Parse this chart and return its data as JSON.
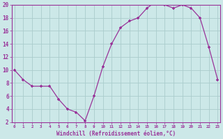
{
  "x": [
    0,
    1,
    2,
    3,
    4,
    5,
    6,
    7,
    8,
    9,
    10,
    11,
    12,
    13,
    14,
    15,
    16,
    17,
    18,
    19,
    20,
    21,
    22,
    23
  ],
  "y": [
    10,
    8.5,
    7.5,
    7.5,
    7.5,
    5.5,
    4,
    3.5,
    2.2,
    6,
    10.5,
    14,
    16.5,
    17.5,
    18,
    19.5,
    20.5,
    20,
    19.5,
    20,
    19.5,
    18,
    13.5,
    8.5
  ],
  "line_color": "#993399",
  "bg_color": "#cce8e8",
  "grid_color": "#aacccc",
  "xlabel": "Windchill (Refroidissement éolien,°C)",
  "xlabel_color": "#993399",
  "tick_color": "#993399",
  "ylim": [
    2,
    20
  ],
  "xlim": [
    0,
    23
  ],
  "yticks": [
    2,
    4,
    6,
    8,
    10,
    12,
    14,
    16,
    18,
    20
  ],
  "xticks": [
    0,
    1,
    2,
    3,
    4,
    5,
    6,
    7,
    8,
    9,
    10,
    11,
    12,
    13,
    14,
    15,
    16,
    17,
    18,
    19,
    20,
    21,
    22,
    23
  ]
}
